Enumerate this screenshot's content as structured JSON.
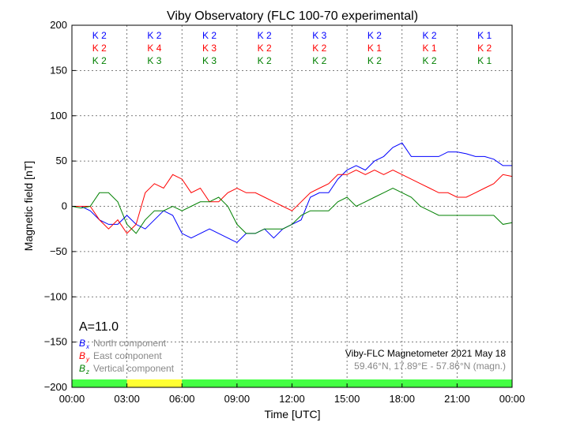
{
  "chart_data": {
    "type": "line",
    "title": "Viby Observatory (FLC 100-70 experimental)",
    "xlabel": "Time [UTC]",
    "ylabel": "Magnetic field [nT]",
    "xlim": [
      0,
      24
    ],
    "ylim": [
      -200,
      200
    ],
    "grid": true,
    "xticks": [
      0,
      3,
      6,
      9,
      12,
      15,
      18,
      21,
      24
    ],
    "xtick_labels": [
      "00:00",
      "03:00",
      "06:00",
      "09:00",
      "12:00",
      "15:00",
      "18:00",
      "21:00",
      "00:00"
    ],
    "yticks": [
      -200,
      -150,
      -100,
      -50,
      0,
      50,
      100,
      150,
      200
    ],
    "ytick_labels": [
      "−200",
      "−150",
      "−100",
      "−50",
      "0",
      "50",
      "100",
      "150",
      "200"
    ],
    "x": [
      0,
      0.5,
      1,
      1.5,
      2,
      2.5,
      3,
      3.5,
      4,
      4.5,
      5,
      5.5,
      6,
      6.5,
      7,
      7.5,
      8,
      8.5,
      9,
      9.5,
      10,
      10.5,
      11,
      11.5,
      12,
      12.5,
      13,
      13.5,
      14,
      14.5,
      15,
      15.5,
      16,
      16.5,
      17,
      17.5,
      18,
      18.5,
      19,
      19.5,
      20,
      20.5,
      21,
      21.5,
      22,
      22.5,
      23,
      23.5,
      24
    ],
    "series": [
      {
        "name": "North component",
        "symbol": "B",
        "sub": "x",
        "color": "#0000ff",
        "values": [
          0,
          0,
          -5,
          -15,
          -20,
          -20,
          -10,
          -20,
          -25,
          -15,
          -5,
          -10,
          -30,
          -35,
          -30,
          -25,
          -30,
          -35,
          -40,
          -30,
          -30,
          -25,
          -35,
          -25,
          -20,
          -15,
          10,
          15,
          15,
          30,
          40,
          45,
          40,
          50,
          55,
          65,
          70,
          55,
          55,
          55,
          55,
          60,
          60,
          58,
          55,
          55,
          52,
          45,
          45
        ]
      },
      {
        "name": "East component",
        "symbol": "B",
        "sub": "y",
        "color": "#ff0000",
        "values": [
          0,
          0,
          0,
          -15,
          -25,
          -15,
          -30,
          -20,
          15,
          25,
          20,
          35,
          30,
          15,
          20,
          5,
          5,
          15,
          20,
          15,
          15,
          10,
          5,
          0,
          -5,
          5,
          15,
          20,
          25,
          35,
          35,
          40,
          35,
          40,
          35,
          40,
          35,
          30,
          25,
          20,
          15,
          15,
          10,
          10,
          15,
          20,
          25,
          35,
          33
        ]
      },
      {
        "name": "Vertical component",
        "symbol": "B",
        "sub": "z",
        "color": "#008000",
        "values": [
          0,
          -2,
          0,
          15,
          15,
          5,
          -20,
          -30,
          -15,
          -5,
          -5,
          0,
          -5,
          0,
          5,
          5,
          10,
          0,
          -20,
          -30,
          -30,
          -25,
          -25,
          -25,
          -20,
          -10,
          -5,
          -5,
          -5,
          5,
          10,
          0,
          5,
          10,
          15,
          20,
          15,
          10,
          0,
          -5,
          -10,
          -10,
          -10,
          -10,
          -10,
          -10,
          -10,
          -20,
          -18
        ]
      }
    ],
    "k_indices": {
      "x": [
        "K 2",
        "K 2",
        "K 2",
        "K 2",
        "K 3",
        "K 2",
        "K 2",
        "K 1"
      ],
      "y": [
        "K 2",
        "K 4",
        "K 3",
        "K 2",
        "K 2",
        "K 1",
        "K 1",
        "K 2"
      ],
      "z": [
        "K 2",
        "K 3",
        "K 3",
        "K 2",
        "K 2",
        "K 2",
        "K 2",
        "K 1"
      ]
    },
    "activity_bar": [
      "green",
      "yellow",
      "green",
      "green",
      "green",
      "green",
      "green",
      "green"
    ],
    "activity_colors": {
      "green": "#44ff44",
      "yellow": "#ffff33"
    },
    "annotations": {
      "a_index": "A=11.0",
      "station": "Viby-FLC Magnetometer 2021 May 18",
      "coords": "59.46°N, 17.89°E - 57.86°N (magn.)"
    }
  }
}
